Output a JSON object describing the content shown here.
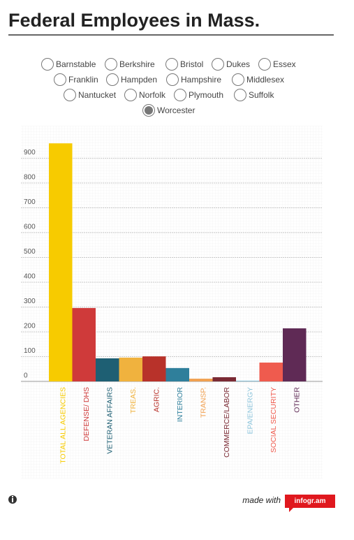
{
  "chart_data": {
    "type": "bar",
    "title": "Federal Employees in Mass.",
    "categories": [
      "TOTAL ALL AGENCIES",
      "DEFENSE/ DHS",
      "VETERAN AFFAIRS",
      "TREAS.",
      "AGRIC.",
      "INTERIOR",
      "TRANSP.",
      "COMMERCE/LABOR",
      "EPA/ENERGY",
      "SOCIAL SECURITY",
      "OTHER"
    ],
    "values": [
      960,
      296,
      93,
      96,
      101,
      54,
      11,
      17,
      3,
      76,
      214
    ],
    "colors": [
      "#f7cb00",
      "#cf3a3a",
      "#1e5f73",
      "#f0b23e",
      "#b8322a",
      "#2f7f9b",
      "#f0a050",
      "#7a2a34",
      "#8ec5dc",
      "#ef5b4e",
      "#5f2a55"
    ],
    "ylim": [
      0,
      1000
    ],
    "yticks": [
      0,
      100,
      200,
      300,
      400,
      500,
      600,
      700,
      800,
      900
    ],
    "grid": true
  },
  "filters": {
    "options": [
      {
        "label": "Barnstable",
        "selected": false
      },
      {
        "label": "Berkshire",
        "selected": false
      },
      {
        "label": "Bristol",
        "selected": false
      },
      {
        "label": "Dukes",
        "selected": false
      },
      {
        "label": "Essex",
        "selected": false
      },
      {
        "label": "Franklin",
        "selected": false
      },
      {
        "label": "Hampden",
        "selected": false
      },
      {
        "label": "Hampshire",
        "selected": false
      },
      {
        "label": "Middlesex",
        "selected": false
      },
      {
        "label": "Nantucket",
        "selected": false
      },
      {
        "label": "Norfolk",
        "selected": false
      },
      {
        "label": "Plymouth",
        "selected": false
      },
      {
        "label": "Suffolk",
        "selected": false
      },
      {
        "label": "Worcester",
        "selected": true
      }
    ]
  },
  "footer": {
    "made_with": "made with",
    "brand": "infogr.am"
  }
}
